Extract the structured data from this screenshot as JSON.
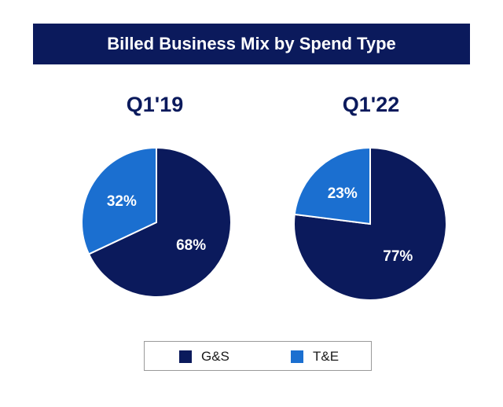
{
  "title": "Billed Business Mix by Spend Type",
  "colors": {
    "banner": "#0b1a5c",
    "gs": "#0b1a5c",
    "te": "#1b6fd0",
    "label_text": "#ffffff"
  },
  "legend": [
    {
      "name": "G&S",
      "color": "#0b1a5c"
    },
    {
      "name": "T&E",
      "color": "#1b6fd0"
    }
  ],
  "chart_data": [
    {
      "type": "pie",
      "title": "Q1'19",
      "slices": [
        {
          "name": "G&S",
          "value": 68,
          "label": "68%",
          "color": "#0b1a5c"
        },
        {
          "name": "T&E",
          "value": 32,
          "label": "32%",
          "color": "#1b6fd0"
        }
      ]
    },
    {
      "type": "pie",
      "title": "Q1'22",
      "slices": [
        {
          "name": "G&S",
          "value": 77,
          "label": "77%",
          "color": "#0b1a5c"
        },
        {
          "name": "T&E",
          "value": 23,
          "label": "23%",
          "color": "#1b6fd0"
        }
      ]
    }
  ]
}
